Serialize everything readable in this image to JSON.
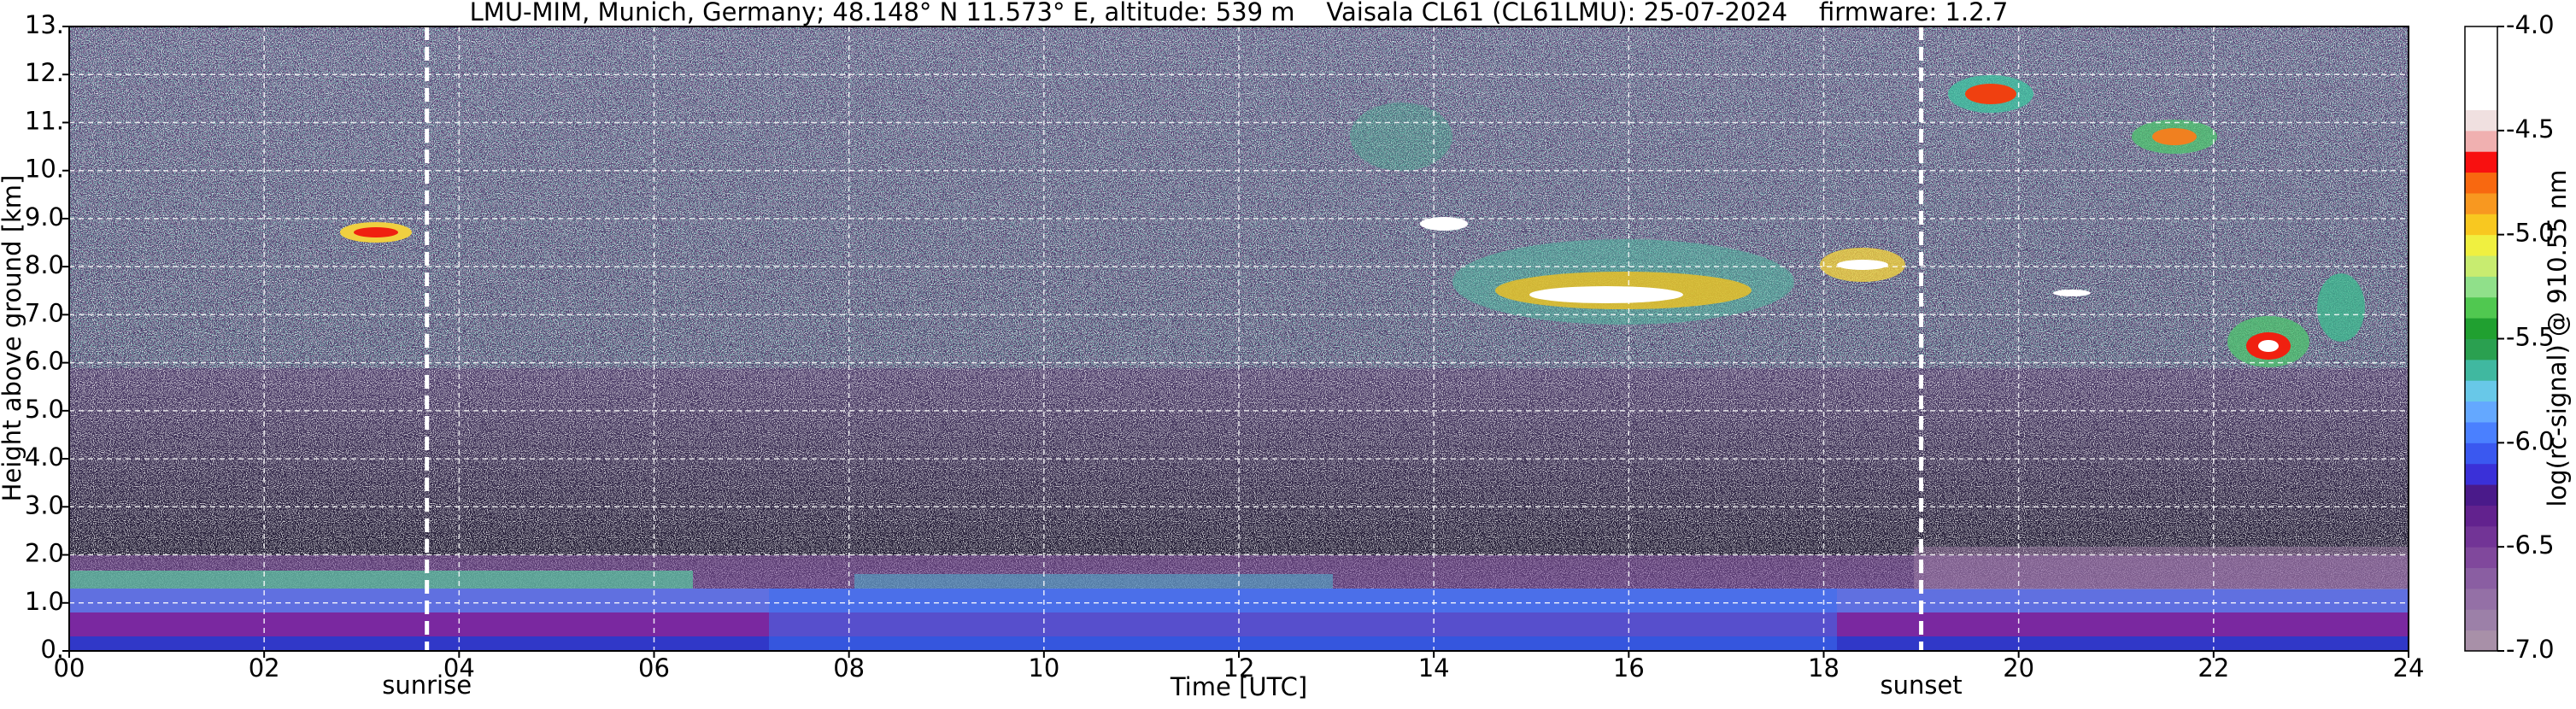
{
  "chart_data": {
    "type": "heatmap",
    "title": "LMU-MIM, Munich, Germany; 48.148° N 11.573° E, altitude: 539 m    Vaisala CL61 (CL61LMU): 25-07-2024    firmware: 1.2.7",
    "x_label": "Time [UTC]",
    "y_label": "Height above ground [km]",
    "xlim": [
      0,
      24
    ],
    "xticks": [
      {
        "value": 0,
        "label": "00"
      },
      {
        "value": 2,
        "label": "02"
      },
      {
        "value": 4,
        "label": "04"
      },
      {
        "value": 6,
        "label": "06"
      },
      {
        "value": 8,
        "label": "08"
      },
      {
        "value": 10,
        "label": "10"
      },
      {
        "value": 12,
        "label": "12"
      },
      {
        "value": 14,
        "label": "14"
      },
      {
        "value": 16,
        "label": "16"
      },
      {
        "value": 18,
        "label": "18"
      },
      {
        "value": 20,
        "label": "20"
      },
      {
        "value": 22,
        "label": "22"
      },
      {
        "value": 24,
        "label": "24"
      }
    ],
    "ylim": [
      0,
      13
    ],
    "yticks": [
      {
        "value": 0,
        "label": "0."
      },
      {
        "value": 1,
        "label": "1.0"
      },
      {
        "value": 2,
        "label": "2.0"
      },
      {
        "value": 3,
        "label": "3.0"
      },
      {
        "value": 4,
        "label": "4.0"
      },
      {
        "value": 5,
        "label": "5.0"
      },
      {
        "value": 6,
        "label": "6.0"
      },
      {
        "value": 7,
        "label": "7.0"
      },
      {
        "value": 8,
        "label": "8.0"
      },
      {
        "value": 9,
        "label": "9.0"
      },
      {
        "value": 10,
        "label": "10."
      },
      {
        "value": 11,
        "label": "11."
      },
      {
        "value": 12,
        "label": "12."
      },
      {
        "value": 13,
        "label": "13."
      }
    ],
    "grid": true,
    "annotations": [
      {
        "label": "sunrise",
        "x": 3.67
      },
      {
        "label": "sunset",
        "x": 19.0
      }
    ],
    "colorbar": {
      "label": "log(rc-signal) @ 910.55 nm",
      "clim": [
        -7.0,
        -4.0
      ],
      "ticks": [
        {
          "value": -4.0,
          "label": "-4.0"
        },
        {
          "value": -4.5,
          "label": "-4.5"
        },
        {
          "value": -5.0,
          "label": "-5.0"
        },
        {
          "value": -5.5,
          "label": "-5.5"
        },
        {
          "value": -6.0,
          "label": "-6.0"
        },
        {
          "value": -6.5,
          "label": "-6.5"
        },
        {
          "value": -7.0,
          "label": "-7.0"
        }
      ],
      "colors": [
        "#a890a8",
        "#9c80a8",
        "#9470a6",
        "#8a5ea2",
        "#80489c",
        "#723496",
        "#62228e",
        "#4a1a8a",
        "#3a30d8",
        "#3a58f0",
        "#4a80ff",
        "#64a8ff",
        "#68c8e8",
        "#40b8a0",
        "#2aa050",
        "#20a030",
        "#50c850",
        "#90e08a",
        "#c8ec70",
        "#f0f040",
        "#f8c820",
        "#f89820",
        "#f86810",
        "#f81010",
        "#f0b0b0",
        "#f0e0e0",
        "#ffffff",
        "#ffffff",
        "#ffffff",
        "#ffffff"
      ]
    }
  }
}
